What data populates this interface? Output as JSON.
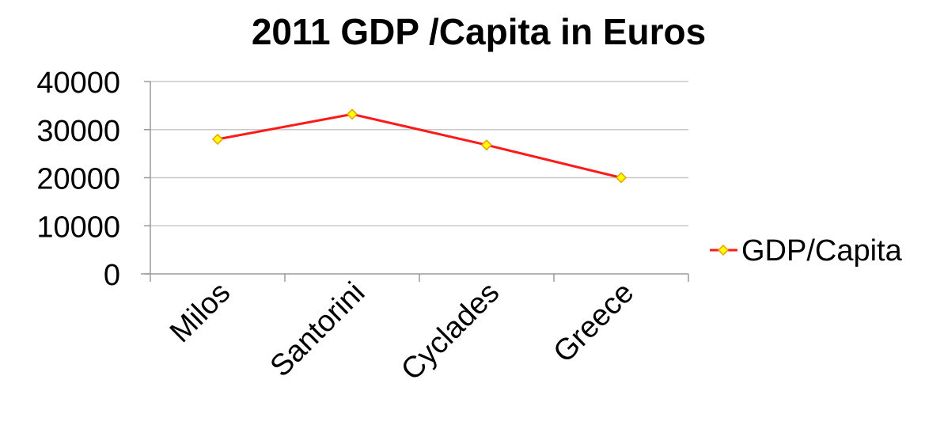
{
  "chart_data": {
    "type": "line",
    "title": "2011 GDP /Capita in Euros",
    "categories": [
      "Milos",
      "Santorini",
      "Cyclades",
      "Greece"
    ],
    "series": [
      {
        "name": "GDP/Capita",
        "values": [
          28000,
          33200,
          26800,
          20000
        ],
        "color": "#ff1a1a",
        "marker_color": "#ffff00"
      }
    ],
    "y_ticks": [
      "0",
      "10000",
      "20000",
      "30000",
      "40000"
    ],
    "ylim": [
      0,
      40000
    ],
    "grid": true,
    "legend_position": "right"
  }
}
